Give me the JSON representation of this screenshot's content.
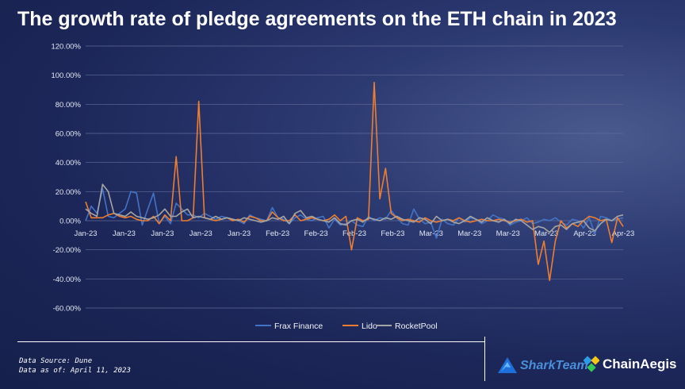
{
  "title": "The growth rate of pledge agreements on the ETH chain in 2023",
  "colors": {
    "frax": "#4472c4",
    "lido": "#ed7d31",
    "rocket": "#a5a5a5",
    "grid": "#5f6b98"
  },
  "chart_data": {
    "type": "line",
    "title": "The growth rate of pledge agreements on the ETH chain in 2023",
    "xlabel": "",
    "ylabel": "",
    "ylim": [
      -60,
      120
    ],
    "yticks": [
      120,
      100,
      80,
      60,
      40,
      20,
      0,
      -20,
      -40,
      -60
    ],
    "ytick_labels": [
      "120.00%",
      "100.00%",
      "80.00%",
      "60.00%",
      "40.00%",
      "20.00%",
      "0.00%",
      "-20.00%",
      "-40.00%",
      "-60.00%"
    ],
    "x_tick_labels": [
      "Jan-23",
      "Jan-23",
      "Jan-23",
      "Jan-23",
      "Jan-23",
      "Feb-23",
      "Feb-23",
      "Feb-23",
      "Feb-23",
      "Mar-23",
      "Mar-23",
      "Mar-23",
      "Mar-23",
      "Apr-23",
      "Apr-23"
    ],
    "legend_position": "bottom",
    "series": [
      {
        "name": "Frax Finance",
        "values": [
          0,
          10,
          5,
          22,
          3,
          2,
          5,
          8,
          20,
          19,
          -3,
          8,
          19,
          -2,
          3,
          -2,
          12,
          8,
          4,
          4,
          2,
          5,
          3,
          1,
          3,
          2,
          1,
          0,
          -2,
          4,
          2,
          1,
          0,
          9,
          2,
          1,
          -2,
          2,
          4,
          1,
          0,
          2,
          3,
          -5,
          1,
          -3,
          -2,
          0,
          -3,
          -4,
          3,
          0,
          2,
          1,
          7,
          2,
          -2,
          -3,
          8,
          1,
          -2,
          -1,
          -12,
          1,
          -2,
          -3,
          2,
          -1,
          2,
          1,
          -2,
          0,
          4,
          2,
          1,
          -3,
          -1,
          0,
          2,
          -2,
          -1,
          1,
          0,
          2,
          -1,
          -3,
          1,
          0,
          -5,
          2,
          -9,
          3,
          2,
          0,
          1,
          2
        ]
      },
      {
        "name": "Lido",
        "values": [
          13,
          2,
          2,
          2,
          4,
          5,
          3,
          2,
          3,
          1,
          0,
          0,
          3,
          -2,
          4,
          0,
          44,
          0,
          0,
          2,
          82,
          2,
          1,
          0,
          1,
          2,
          0,
          1,
          -1,
          3,
          2,
          0,
          0,
          6,
          2,
          0,
          0,
          4,
          0,
          1,
          2,
          1,
          0,
          1,
          4,
          0,
          3,
          -20,
          2,
          0,
          1,
          95,
          15,
          36,
          5,
          2,
          0,
          1,
          0,
          -1,
          2,
          0,
          -1,
          0,
          1,
          0,
          2,
          0,
          -1,
          0,
          1,
          0,
          0,
          1,
          0,
          -1,
          0,
          1,
          -1,
          0,
          -30,
          -14,
          -41,
          -14,
          0,
          -5,
          -2,
          -4,
          0,
          3,
          2,
          0,
          1,
          -15,
          2,
          -4
        ]
      },
      {
        "name": "RocketPool",
        "values": [
          8,
          5,
          3,
          25,
          20,
          5,
          4,
          3,
          6,
          3,
          2,
          1,
          2,
          4,
          8,
          3,
          3,
          6,
          8,
          2,
          3,
          2,
          1,
          3,
          1,
          2,
          1,
          0,
          2,
          1,
          0,
          -1,
          0,
          2,
          1,
          3,
          -2,
          5,
          7,
          2,
          3,
          1,
          0,
          -1,
          2,
          -2,
          -3,
          0,
          1,
          -1,
          2,
          1,
          0,
          2,
          1,
          3,
          1,
          0,
          -1,
          2,
          1,
          -2,
          3,
          0,
          1,
          -1,
          -2,
          0,
          3,
          1,
          -1,
          2,
          0,
          -1,
          1,
          -2,
          1,
          0,
          -3,
          -6,
          -4,
          -5,
          -8,
          -4,
          -3,
          -6,
          -2,
          -1,
          0,
          -5,
          -7,
          -2,
          1,
          0,
          3,
          4
        ]
      }
    ]
  }
}
